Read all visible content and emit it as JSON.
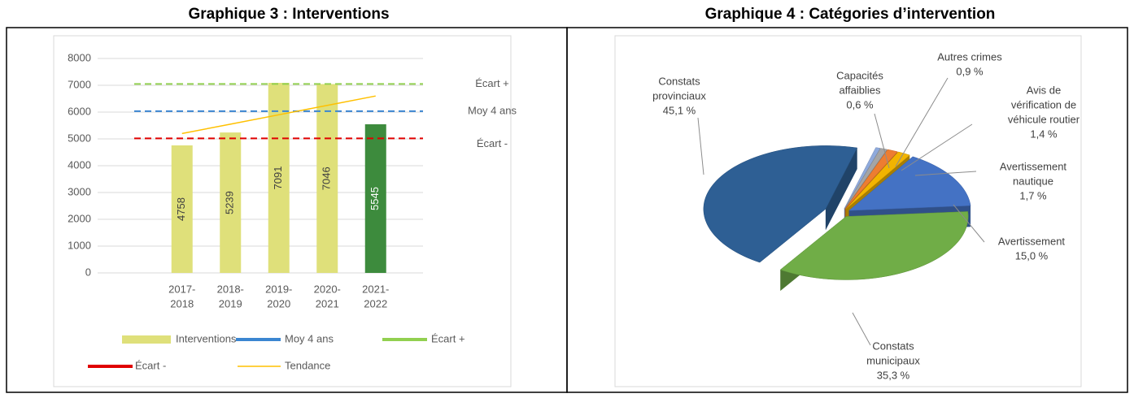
{
  "chart_data": [
    {
      "type": "bar",
      "title": "Graphique 3 : Interventions",
      "categories": [
        [
          "2017-",
          "2018"
        ],
        [
          "2018-",
          "2019"
        ],
        [
          "2019-",
          "2020"
        ],
        [
          "2020-",
          "2021"
        ],
        [
          "2021-",
          "2022"
        ]
      ],
      "ylim": [
        0,
        8000
      ],
      "yticks": [
        0,
        1000,
        2000,
        3000,
        4000,
        5000,
        6000,
        7000,
        8000
      ],
      "grid": true,
      "series": [
        {
          "name": "Interventions",
          "type": "bar",
          "colors": [
            "#dfe07a",
            "#dfe07a",
            "#dfe07a",
            "#dfe07a",
            "#3d8b3d"
          ],
          "values": [
            4758,
            5239,
            7091,
            7046,
            5545
          ]
        },
        {
          "name": "Moy 4 ans",
          "type": "hline",
          "color": "#3b86d1",
          "value": 6034
        },
        {
          "name": "Écart +",
          "type": "hline",
          "color": "#92d050",
          "value": 7050
        },
        {
          "name": "Écart -",
          "type": "hline",
          "color": "#e00000",
          "value": 5020
        },
        {
          "name": "Tendance",
          "type": "line",
          "color": "#ffc000",
          "values": [
            5200,
            5550,
            5900,
            6250,
            6600
          ]
        }
      ]
    },
    {
      "type": "pie",
      "title": "Graphique 4 : Catégories d’intervention",
      "categories": [
        [
          "Capacités",
          "affaiblies"
        ],
        [
          "Autres crimes"
        ],
        [
          "Avis de",
          "vérification de",
          "véhicule routier"
        ],
        [
          "Avertissement",
          "nautique"
        ],
        [
          "Avertissement"
        ],
        [
          "Constats",
          "municipaux"
        ],
        [
          "Constats",
          "provinciaux"
        ]
      ],
      "values": [
        0.6,
        0.9,
        1.4,
        1.7,
        15.0,
        35.3,
        45.1
      ],
      "value_labels": [
        "0,6 %",
        "0,9 %",
        "1,4 %",
        "1,7 %",
        "15,0 %",
        "35,3 %",
        "45,1 %"
      ],
      "colors": [
        "#8faadc",
        "#a5a5a5",
        "#ed7d31",
        "#f2b400",
        "#4472c4",
        "#70ad47",
        "#2e5f94"
      ]
    }
  ]
}
